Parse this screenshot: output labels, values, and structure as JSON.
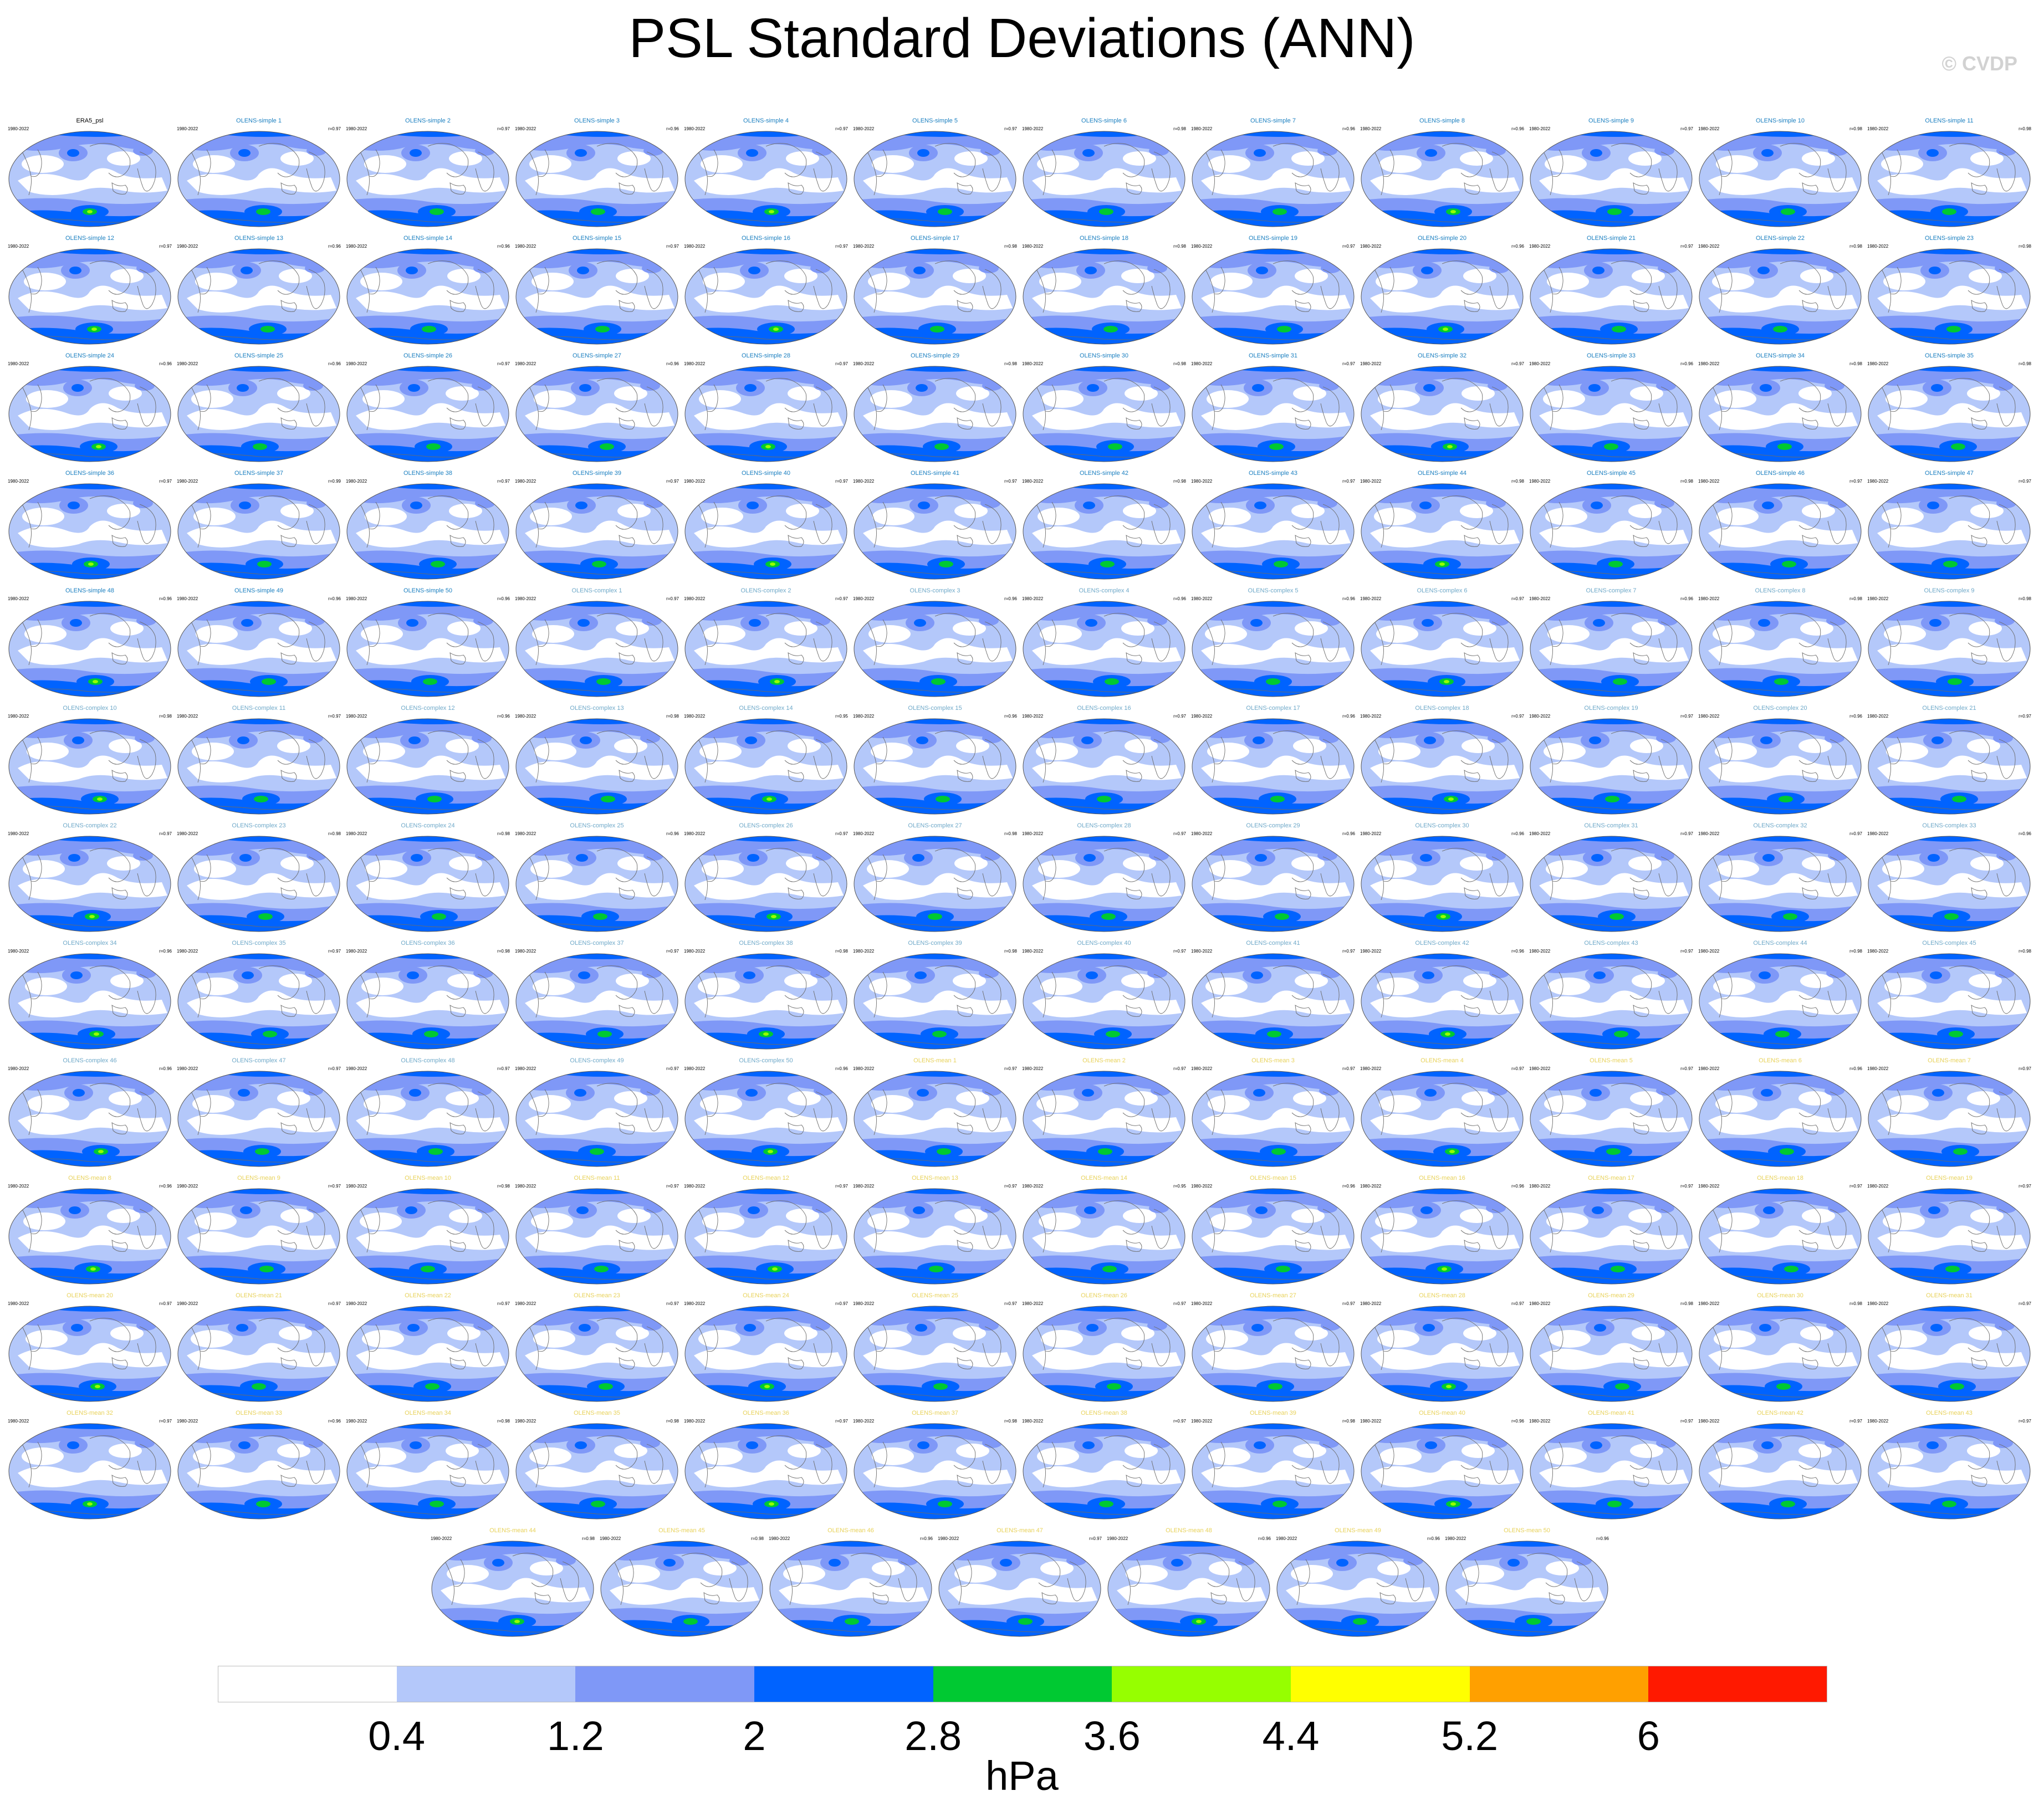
{
  "title": "PSL Standard Deviations (ANN)",
  "watermark": "© CVDP",
  "units": "hPa",
  "colorbar": {
    "colors": [
      "#ffffff",
      "#b4c8fa",
      "#7f98f7",
      "#0063ff",
      "#00c932",
      "#96ff00",
      "#ffff00",
      "#ffa000",
      "#ff1900"
    ],
    "tick_labels": [
      "0.4",
      "1.2",
      "2",
      "2.8",
      "3.6",
      "4.4",
      "5.2",
      "6"
    ]
  },
  "panels": [
    {
      "title": "ERA5_psl",
      "years": "1980-2022",
      "corr": "",
      "title_color": "#000000"
    },
    {
      "title": "OLENS-simple 1",
      "years": "1980-2022",
      "corr": "r=0.97",
      "title_color": "#1a7fc0"
    },
    {
      "title": "OLENS-simple 2",
      "years": "1980-2022",
      "corr": "r=0.97",
      "title_color": "#1a7fc0"
    },
    {
      "title": "OLENS-simple 3",
      "years": "1980-2022",
      "corr": "r=0.96",
      "title_color": "#1a7fc0"
    },
    {
      "title": "OLENS-simple 4",
      "years": "1980-2022",
      "corr": "r=0.97",
      "title_color": "#1a7fc0"
    },
    {
      "title": "OLENS-simple 5",
      "years": "1980-2022",
      "corr": "r=0.97",
      "title_color": "#1a7fc0"
    },
    {
      "title": "OLENS-simple 6",
      "years": "1980-2022",
      "corr": "r=0.98",
      "title_color": "#1a7fc0"
    },
    {
      "title": "OLENS-simple 7",
      "years": "1980-2022",
      "corr": "r=0.96",
      "title_color": "#1a7fc0"
    },
    {
      "title": "OLENS-simple 8",
      "years": "1980-2022",
      "corr": "r=0.96",
      "title_color": "#1a7fc0"
    },
    {
      "title": "OLENS-simple 9",
      "years": "1980-2022",
      "corr": "r=0.97",
      "title_color": "#1a7fc0"
    },
    {
      "title": "OLENS-simple 10",
      "years": "1980-2022",
      "corr": "r=0.98",
      "title_color": "#1a7fc0"
    },
    {
      "title": "OLENS-simple 11",
      "years": "1980-2022",
      "corr": "r=0.98",
      "title_color": "#1a7fc0"
    },
    {
      "title": "OLENS-simple 12",
      "years": "1980-2022",
      "corr": "r=0.97",
      "title_color": "#1a7fc0"
    },
    {
      "title": "OLENS-simple 13",
      "years": "1980-2022",
      "corr": "r=0.96",
      "title_color": "#1a7fc0"
    },
    {
      "title": "OLENS-simple 14",
      "years": "1980-2022",
      "corr": "r=0.96",
      "title_color": "#1a7fc0"
    },
    {
      "title": "OLENS-simple 15",
      "years": "1980-2022",
      "corr": "r=0.97",
      "title_color": "#1a7fc0"
    },
    {
      "title": "OLENS-simple 16",
      "years": "1980-2022",
      "corr": "r=0.97",
      "title_color": "#1a7fc0"
    },
    {
      "title": "OLENS-simple 17",
      "years": "1980-2022",
      "corr": "r=0.98",
      "title_color": "#1a7fc0"
    },
    {
      "title": "OLENS-simple 18",
      "years": "1980-2022",
      "corr": "r=0.98",
      "title_color": "#1a7fc0"
    },
    {
      "title": "OLENS-simple 19",
      "years": "1980-2022",
      "corr": "r=0.97",
      "title_color": "#1a7fc0"
    },
    {
      "title": "OLENS-simple 20",
      "years": "1980-2022",
      "corr": "r=0.96",
      "title_color": "#1a7fc0"
    },
    {
      "title": "OLENS-simple 21",
      "years": "1980-2022",
      "corr": "r=0.97",
      "title_color": "#1a7fc0"
    },
    {
      "title": "OLENS-simple 22",
      "years": "1980-2022",
      "corr": "r=0.98",
      "title_color": "#1a7fc0"
    },
    {
      "title": "OLENS-simple 23",
      "years": "1980-2022",
      "corr": "r=0.98",
      "title_color": "#1a7fc0"
    },
    {
      "title": "OLENS-simple 24",
      "years": "1980-2022",
      "corr": "r=0.96",
      "title_color": "#1a7fc0"
    },
    {
      "title": "OLENS-simple 25",
      "years": "1980-2022",
      "corr": "r=0.96",
      "title_color": "#1a7fc0"
    },
    {
      "title": "OLENS-simple 26",
      "years": "1980-2022",
      "corr": "r=0.97",
      "title_color": "#1a7fc0"
    },
    {
      "title": "OLENS-simple 27",
      "years": "1980-2022",
      "corr": "r=0.96",
      "title_color": "#1a7fc0"
    },
    {
      "title": "OLENS-simple 28",
      "years": "1980-2022",
      "corr": "r=0.97",
      "title_color": "#1a7fc0"
    },
    {
      "title": "OLENS-simple 29",
      "years": "1980-2022",
      "corr": "r=0.98",
      "title_color": "#1a7fc0"
    },
    {
      "title": "OLENS-simple 30",
      "years": "1980-2022",
      "corr": "r=0.98",
      "title_color": "#1a7fc0"
    },
    {
      "title": "OLENS-simple 31",
      "years": "1980-2022",
      "corr": "r=0.97",
      "title_color": "#1a7fc0"
    },
    {
      "title": "OLENS-simple 32",
      "years": "1980-2022",
      "corr": "r=0.97",
      "title_color": "#1a7fc0"
    },
    {
      "title": "OLENS-simple 33",
      "years": "1980-2022",
      "corr": "r=0.96",
      "title_color": "#1a7fc0"
    },
    {
      "title": "OLENS-simple 34",
      "years": "1980-2022",
      "corr": "r=0.98",
      "title_color": "#1a7fc0"
    },
    {
      "title": "OLENS-simple 35",
      "years": "1980-2022",
      "corr": "r=0.98",
      "title_color": "#1a7fc0"
    },
    {
      "title": "OLENS-simple 36",
      "years": "1980-2022",
      "corr": "r=0.97",
      "title_color": "#1a7fc0"
    },
    {
      "title": "OLENS-simple 37",
      "years": "1980-2022",
      "corr": "r=0.99",
      "title_color": "#1a7fc0"
    },
    {
      "title": "OLENS-simple 38",
      "years": "1980-2022",
      "corr": "r=0.97",
      "title_color": "#1a7fc0"
    },
    {
      "title": "OLENS-simple 39",
      "years": "1980-2022",
      "corr": "r=0.97",
      "title_color": "#1a7fc0"
    },
    {
      "title": "OLENS-simple 40",
      "years": "1980-2022",
      "corr": "r=0.97",
      "title_color": "#1a7fc0"
    },
    {
      "title": "OLENS-simple 41",
      "years": "1980-2022",
      "corr": "r=0.97",
      "title_color": "#1a7fc0"
    },
    {
      "title": "OLENS-simple 42",
      "years": "1980-2022",
      "corr": "r=0.98",
      "title_color": "#1a7fc0"
    },
    {
      "title": "OLENS-simple 43",
      "years": "1980-2022",
      "corr": "r=0.97",
      "title_color": "#1a7fc0"
    },
    {
      "title": "OLENS-simple 44",
      "years": "1980-2022",
      "corr": "r=0.98",
      "title_color": "#1a7fc0"
    },
    {
      "title": "OLENS-simple 45",
      "years": "1980-2022",
      "corr": "r=0.98",
      "title_color": "#1a7fc0"
    },
    {
      "title": "OLENS-simple 46",
      "years": "1980-2022",
      "corr": "r=0.97",
      "title_color": "#1a7fc0"
    },
    {
      "title": "OLENS-simple 47",
      "years": "1980-2022",
      "corr": "r=0.97",
      "title_color": "#1a7fc0"
    },
    {
      "title": "OLENS-simple 48",
      "years": "1980-2022",
      "corr": "r=0.96",
      "title_color": "#1a7fc0"
    },
    {
      "title": "OLENS-simple 49",
      "years": "1980-2022",
      "corr": "r=0.96",
      "title_color": "#1a7fc0"
    },
    {
      "title": "OLENS-simple 50",
      "years": "1980-2022",
      "corr": "r=0.96",
      "title_color": "#1a7fc0"
    },
    {
      "title": "OLENS-complex 1",
      "years": "1980-2022",
      "corr": "r=0.97",
      "title_color": "#6fa9c9"
    },
    {
      "title": "OLENS-complex 2",
      "years": "1980-2022",
      "corr": "r=0.97",
      "title_color": "#6fa9c9"
    },
    {
      "title": "OLENS-complex 3",
      "years": "1980-2022",
      "corr": "r=0.96",
      "title_color": "#6fa9c9"
    },
    {
      "title": "OLENS-complex 4",
      "years": "1980-2022",
      "corr": "r=0.96",
      "title_color": "#6fa9c9"
    },
    {
      "title": "OLENS-complex 5",
      "years": "1980-2022",
      "corr": "r=0.96",
      "title_color": "#6fa9c9"
    },
    {
      "title": "OLENS-complex 6",
      "years": "1980-2022",
      "corr": "r=0.97",
      "title_color": "#6fa9c9"
    },
    {
      "title": "OLENS-complex 7",
      "years": "1980-2022",
      "corr": "r=0.96",
      "title_color": "#6fa9c9"
    },
    {
      "title": "OLENS-complex 8",
      "years": "1980-2022",
      "corr": "r=0.98",
      "title_color": "#6fa9c9"
    },
    {
      "title": "OLENS-complex 9",
      "years": "1980-2022",
      "corr": "r=0.98",
      "title_color": "#6fa9c9"
    },
    {
      "title": "OLENS-complex 10",
      "years": "1980-2022",
      "corr": "r=0.98",
      "title_color": "#6fa9c9"
    },
    {
      "title": "OLENS-complex 11",
      "years": "1980-2022",
      "corr": "r=0.97",
      "title_color": "#6fa9c9"
    },
    {
      "title": "OLENS-complex 12",
      "years": "1980-2022",
      "corr": "r=0.96",
      "title_color": "#6fa9c9"
    },
    {
      "title": "OLENS-complex 13",
      "years": "1980-2022",
      "corr": "r=0.98",
      "title_color": "#6fa9c9"
    },
    {
      "title": "OLENS-complex 14",
      "years": "1980-2022",
      "corr": "r=0.95",
      "title_color": "#6fa9c9"
    },
    {
      "title": "OLENS-complex 15",
      "years": "1980-2022",
      "corr": "r=0.96",
      "title_color": "#6fa9c9"
    },
    {
      "title": "OLENS-complex 16",
      "years": "1980-2022",
      "corr": "r=0.97",
      "title_color": "#6fa9c9"
    },
    {
      "title": "OLENS-complex 17",
      "years": "1980-2022",
      "corr": "r=0.96",
      "title_color": "#6fa9c9"
    },
    {
      "title": "OLENS-complex 18",
      "years": "1980-2022",
      "corr": "r=0.97",
      "title_color": "#6fa9c9"
    },
    {
      "title": "OLENS-complex 19",
      "years": "1980-2022",
      "corr": "r=0.97",
      "title_color": "#6fa9c9"
    },
    {
      "title": "OLENS-complex 20",
      "years": "1980-2022",
      "corr": "r=0.96",
      "title_color": "#6fa9c9"
    },
    {
      "title": "OLENS-complex 21",
      "years": "1980-2022",
      "corr": "r=0.97",
      "title_color": "#6fa9c9"
    },
    {
      "title": "OLENS-complex 22",
      "years": "1980-2022",
      "corr": "r=0.97",
      "title_color": "#6fa9c9"
    },
    {
      "title": "OLENS-complex 23",
      "years": "1980-2022",
      "corr": "r=0.98",
      "title_color": "#6fa9c9"
    },
    {
      "title": "OLENS-complex 24",
      "years": "1980-2022",
      "corr": "r=0.98",
      "title_color": "#6fa9c9"
    },
    {
      "title": "OLENS-complex 25",
      "years": "1980-2022",
      "corr": "r=0.96",
      "title_color": "#6fa9c9"
    },
    {
      "title": "OLENS-complex 26",
      "years": "1980-2022",
      "corr": "r=0.97",
      "title_color": "#6fa9c9"
    },
    {
      "title": "OLENS-complex 27",
      "years": "1980-2022",
      "corr": "r=0.98",
      "title_color": "#6fa9c9"
    },
    {
      "title": "OLENS-complex 28",
      "years": "1980-2022",
      "corr": "r=0.97",
      "title_color": "#6fa9c9"
    },
    {
      "title": "OLENS-complex 29",
      "years": "1980-2022",
      "corr": "r=0.96",
      "title_color": "#6fa9c9"
    },
    {
      "title": "OLENS-complex 30",
      "years": "1980-2022",
      "corr": "r=0.96",
      "title_color": "#6fa9c9"
    },
    {
      "title": "OLENS-complex 31",
      "years": "1980-2022",
      "corr": "r=0.97",
      "title_color": "#6fa9c9"
    },
    {
      "title": "OLENS-complex 32",
      "years": "1980-2022",
      "corr": "r=0.97",
      "title_color": "#6fa9c9"
    },
    {
      "title": "OLENS-complex 33",
      "years": "1980-2022",
      "corr": "r=0.96",
      "title_color": "#6fa9c9"
    },
    {
      "title": "OLENS-complex 34",
      "years": "1980-2022",
      "corr": "r=0.96",
      "title_color": "#6fa9c9"
    },
    {
      "title": "OLENS-complex 35",
      "years": "1980-2022",
      "corr": "r=0.97",
      "title_color": "#6fa9c9"
    },
    {
      "title": "OLENS-complex 36",
      "years": "1980-2022",
      "corr": "r=0.98",
      "title_color": "#6fa9c9"
    },
    {
      "title": "OLENS-complex 37",
      "years": "1980-2022",
      "corr": "r=0.97",
      "title_color": "#6fa9c9"
    },
    {
      "title": "OLENS-complex 38",
      "years": "1980-2022",
      "corr": "r=0.98",
      "title_color": "#6fa9c9"
    },
    {
      "title": "OLENS-complex 39",
      "years": "1980-2022",
      "corr": "r=0.98",
      "title_color": "#6fa9c9"
    },
    {
      "title": "OLENS-complex 40",
      "years": "1980-2022",
      "corr": "r=0.97",
      "title_color": "#6fa9c9"
    },
    {
      "title": "OLENS-complex 41",
      "years": "1980-2022",
      "corr": "r=0.97",
      "title_color": "#6fa9c9"
    },
    {
      "title": "OLENS-complex 42",
      "years": "1980-2022",
      "corr": "r=0.96",
      "title_color": "#6fa9c9"
    },
    {
      "title": "OLENS-complex 43",
      "years": "1980-2022",
      "corr": "r=0.97",
      "title_color": "#6fa9c9"
    },
    {
      "title": "OLENS-complex 44",
      "years": "1980-2022",
      "corr": "r=0.98",
      "title_color": "#6fa9c9"
    },
    {
      "title": "OLENS-complex 45",
      "years": "1980-2022",
      "corr": "r=0.98",
      "title_color": "#6fa9c9"
    },
    {
      "title": "OLENS-complex 46",
      "years": "1980-2022",
      "corr": "r=0.96",
      "title_color": "#6fa9c9"
    },
    {
      "title": "OLENS-complex 47",
      "years": "1980-2022",
      "corr": "r=0.97",
      "title_color": "#6fa9c9"
    },
    {
      "title": "OLENS-complex 48",
      "years": "1980-2022",
      "corr": "r=0.97",
      "title_color": "#6fa9c9"
    },
    {
      "title": "OLENS-complex 49",
      "years": "1980-2022",
      "corr": "r=0.97",
      "title_color": "#6fa9c9"
    },
    {
      "title": "OLENS-complex 50",
      "years": "1980-2022",
      "corr": "r=0.96",
      "title_color": "#6fa9c9"
    },
    {
      "title": "OLENS-mean 1",
      "years": "1980-2022",
      "corr": "r=0.97",
      "title_color": "#e8d25a"
    },
    {
      "title": "OLENS-mean 2",
      "years": "1980-2022",
      "corr": "r=0.97",
      "title_color": "#e8d25a"
    },
    {
      "title": "OLENS-mean 3",
      "years": "1980-2022",
      "corr": "r=0.97",
      "title_color": "#e8d25a"
    },
    {
      "title": "OLENS-mean 4",
      "years": "1980-2022",
      "corr": "r=0.97",
      "title_color": "#e8d25a"
    },
    {
      "title": "OLENS-mean 5",
      "years": "1980-2022",
      "corr": "r=0.97",
      "title_color": "#e8d25a"
    },
    {
      "title": "OLENS-mean 6",
      "years": "1980-2022",
      "corr": "r=0.96",
      "title_color": "#e8d25a"
    },
    {
      "title": "OLENS-mean 7",
      "years": "1980-2022",
      "corr": "r=0.97",
      "title_color": "#e8d25a"
    },
    {
      "title": "OLENS-mean 8",
      "years": "1980-2022",
      "corr": "r=0.96",
      "title_color": "#e8d25a"
    },
    {
      "title": "OLENS-mean 9",
      "years": "1980-2022",
      "corr": "r=0.97",
      "title_color": "#e8d25a"
    },
    {
      "title": "OLENS-mean 10",
      "years": "1980-2022",
      "corr": "r=0.98",
      "title_color": "#e8d25a"
    },
    {
      "title": "OLENS-mean 11",
      "years": "1980-2022",
      "corr": "r=0.97",
      "title_color": "#e8d25a"
    },
    {
      "title": "OLENS-mean 12",
      "years": "1980-2022",
      "corr": "r=0.97",
      "title_color": "#e8d25a"
    },
    {
      "title": "OLENS-mean 13",
      "years": "1980-2022",
      "corr": "r=0.97",
      "title_color": "#e8d25a"
    },
    {
      "title": "OLENS-mean 14",
      "years": "1980-2022",
      "corr": "r=0.95",
      "title_color": "#e8d25a"
    },
    {
      "title": "OLENS-mean 15",
      "years": "1980-2022",
      "corr": "r=0.96",
      "title_color": "#e8d25a"
    },
    {
      "title": "OLENS-mean 16",
      "years": "1980-2022",
      "corr": "r=0.96",
      "title_color": "#e8d25a"
    },
    {
      "title": "OLENS-mean 17",
      "years": "1980-2022",
      "corr": "r=0.97",
      "title_color": "#e8d25a"
    },
    {
      "title": "OLENS-mean 18",
      "years": "1980-2022",
      "corr": "r=0.97",
      "title_color": "#e8d25a"
    },
    {
      "title": "OLENS-mean 19",
      "years": "1980-2022",
      "corr": "r=0.97",
      "title_color": "#e8d25a"
    },
    {
      "title": "OLENS-mean 20",
      "years": "1980-2022",
      "corr": "r=0.97",
      "title_color": "#e8d25a"
    },
    {
      "title": "OLENS-mean 21",
      "years": "1980-2022",
      "corr": "r=0.97",
      "title_color": "#e8d25a"
    },
    {
      "title": "OLENS-mean 22",
      "years": "1980-2022",
      "corr": "r=0.97",
      "title_color": "#e8d25a"
    },
    {
      "title": "OLENS-mean 23",
      "years": "1980-2022",
      "corr": "r=0.97",
      "title_color": "#e8d25a"
    },
    {
      "title": "OLENS-mean 24",
      "years": "1980-2022",
      "corr": "r=0.97",
      "title_color": "#e8d25a"
    },
    {
      "title": "OLENS-mean 25",
      "years": "1980-2022",
      "corr": "r=0.97",
      "title_color": "#e8d25a"
    },
    {
      "title": "OLENS-mean 26",
      "years": "1980-2022",
      "corr": "r=0.97",
      "title_color": "#e8d25a"
    },
    {
      "title": "OLENS-mean 27",
      "years": "1980-2022",
      "corr": "r=0.97",
      "title_color": "#e8d25a"
    },
    {
      "title": "OLENS-mean 28",
      "years": "1980-2022",
      "corr": "r=0.97",
      "title_color": "#e8d25a"
    },
    {
      "title": "OLENS-mean 29",
      "years": "1980-2022",
      "corr": "r=0.98",
      "title_color": "#e8d25a"
    },
    {
      "title": "OLENS-mean 30",
      "years": "1980-2022",
      "corr": "r=0.98",
      "title_color": "#e8d25a"
    },
    {
      "title": "OLENS-mean 31",
      "years": "1980-2022",
      "corr": "r=0.97",
      "title_color": "#e8d25a"
    },
    {
      "title": "OLENS-mean 32",
      "years": "1980-2022",
      "corr": "r=0.97",
      "title_color": "#e8d25a"
    },
    {
      "title": "OLENS-mean 33",
      "years": "1980-2022",
      "corr": "r=0.96",
      "title_color": "#e8d25a"
    },
    {
      "title": "OLENS-mean 34",
      "years": "1980-2022",
      "corr": "r=0.98",
      "title_color": "#e8d25a"
    },
    {
      "title": "OLENS-mean 35",
      "years": "1980-2022",
      "corr": "r=0.98",
      "title_color": "#e8d25a"
    },
    {
      "title": "OLENS-mean 36",
      "years": "1980-2022",
      "corr": "r=0.97",
      "title_color": "#e8d25a"
    },
    {
      "title": "OLENS-mean 37",
      "years": "1980-2022",
      "corr": "r=0.98",
      "title_color": "#e8d25a"
    },
    {
      "title": "OLENS-mean 38",
      "years": "1980-2022",
      "corr": "r=0.97",
      "title_color": "#e8d25a"
    },
    {
      "title": "OLENS-mean 39",
      "years": "1980-2022",
      "corr": "r=0.98",
      "title_color": "#e8d25a"
    },
    {
      "title": "OLENS-mean 40",
      "years": "1980-2022",
      "corr": "r=0.96",
      "title_color": "#e8d25a"
    },
    {
      "title": "OLENS-mean 41",
      "years": "1980-2022",
      "corr": "r=0.97",
      "title_color": "#e8d25a"
    },
    {
      "title": "OLENS-mean 42",
      "years": "1980-2022",
      "corr": "r=0.97",
      "title_color": "#e8d25a"
    },
    {
      "title": "OLENS-mean 43",
      "years": "1980-2022",
      "corr": "r=0.97",
      "title_color": "#e8d25a"
    },
    {
      "title": "OLENS-mean 44",
      "years": "1980-2022",
      "corr": "r=0.98",
      "title_color": "#e8d25a"
    },
    {
      "title": "OLENS-mean 45",
      "years": "1980-2022",
      "corr": "r=0.98",
      "title_color": "#e8d25a"
    },
    {
      "title": "OLENS-mean 46",
      "years": "1980-2022",
      "corr": "r=0.96",
      "title_color": "#e8d25a"
    },
    {
      "title": "OLENS-mean 47",
      "years": "1980-2022",
      "corr": "r=0.97",
      "title_color": "#e8d25a"
    },
    {
      "title": "OLENS-mean 48",
      "years": "1980-2022",
      "corr": "r=0.96",
      "title_color": "#e8d25a"
    },
    {
      "title": "OLENS-mean 49",
      "years": "1980-2022",
      "corr": "r=0.96",
      "title_color": "#e8d25a"
    },
    {
      "title": "OLENS-mean 50",
      "years": "1980-2022",
      "corr": "r=0.96",
      "title_color": "#e8d25a"
    }
  ]
}
